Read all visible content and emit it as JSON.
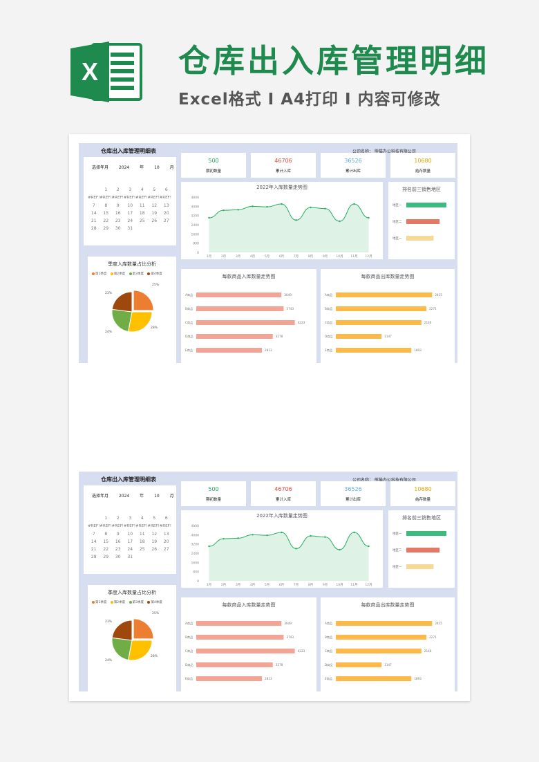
{
  "banner": {
    "logo_letter": "X",
    "title": "仓库出入库管理明细",
    "subtitle": "Excel格式 I A4打印 I 内容可修改",
    "green": "#1f8a4e"
  },
  "dashboard": {
    "title": "仓库出入库管理明细表",
    "company": "公司名称：  熊猫办公科技有限公司",
    "calendar": {
      "select_label": "选择年月",
      "year": "2024",
      "year_unit": "年",
      "month": "10",
      "month_unit": "月",
      "row1": [
        "1",
        "2",
        "3",
        "4",
        "5",
        "6"
      ],
      "ref_text": "#REF!#REF!#REF!#REF!#REF!#REF!#REF!",
      "rows": [
        [
          "7",
          "8",
          "9",
          "10",
          "11",
          "12",
          "13"
        ],
        [
          "14",
          "15",
          "16",
          "17",
          "18",
          "19",
          "20"
        ],
        [
          "21",
          "22",
          "23",
          "24",
          "25",
          "26",
          "27"
        ],
        [
          "28",
          "29",
          "30",
          "31",
          "",
          "",
          ""
        ]
      ]
    },
    "kpis": [
      {
        "value": "500",
        "label": "期初数量",
        "color": "#27ae60"
      },
      {
        "value": "46706",
        "label": "累计入库",
        "color": "#e74c3c"
      },
      {
        "value": "36526",
        "label": "累计出库",
        "color": "#5dade2"
      },
      {
        "value": "10680",
        "label": "结存数量",
        "color": "#e6a700"
      }
    ],
    "trend_title": "2022年入库数量走势图",
    "top3": {
      "title": "排名前三销售地区",
      "labels": [
        "地区一",
        "地区二",
        "地区一"
      ],
      "values": [
        100,
        83,
        68
      ],
      "colors": [
        "#3dbb7f",
        "#e27865",
        "#f5d994"
      ]
    },
    "pie_title": "季度入库数量占比分析",
    "in_title": "每款商品入库数量走势图",
    "out_title": "每款商品出库数量走势图"
  },
  "chart_data": [
    {
      "type": "line",
      "title": "2022年入库数量走势图",
      "x": [
        "1月",
        "2月",
        "3月",
        "4月",
        "5月",
        "6月",
        "7月",
        "8月",
        "9月",
        "10月",
        "11月",
        "12月"
      ],
      "y_ticks": [
        "4800",
        "4000",
        "3200",
        "2400",
        "1600",
        "800",
        "0"
      ],
      "ylim": [
        0,
        4800
      ],
      "series": [
        {
          "values": [
            3000,
            3650,
            3700,
            4000,
            3950,
            4200,
            2800,
            3900,
            3800,
            2700,
            4200,
            3000
          ]
        }
      ],
      "color": "#27ae60"
    },
    {
      "type": "pie",
      "categories": [
        "第1季度",
        "第2季度",
        "第3季度",
        "第4季度"
      ],
      "values": [
        25,
        28,
        24,
        23
      ],
      "labels": [
        "25%",
        "28%",
        "24%",
        "23%"
      ],
      "colors": [
        "#ed7d31",
        "#ffc000",
        "#70ad47",
        "#9e480e"
      ]
    },
    {
      "type": "bar",
      "title": "每款商品入库数量走势图",
      "categories": [
        "A商品",
        "B商品",
        "C商品",
        "D商品",
        "E商品"
      ],
      "values": [
        3649,
        3743,
        4223,
        3278,
        2813
      ],
      "xlim": [
        0,
        4500
      ],
      "color": "#f2a594"
    },
    {
      "type": "bar",
      "title": "每款商品出库数量走势图",
      "categories": [
        "A商品",
        "B商品",
        "C商品",
        "D商品",
        "E商品"
      ],
      "values": [
        2415,
        2271,
        2146,
        1147,
        1893
      ],
      "xlim": [
        0,
        2600
      ],
      "color": "#fdb94a"
    }
  ]
}
